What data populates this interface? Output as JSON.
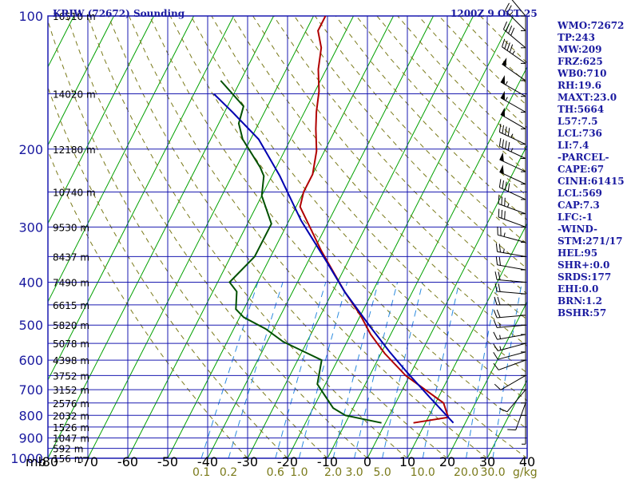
{
  "header": {
    "station": "KRIW (72672) Sounding",
    "time": "1200Z  9 OCT 25"
  },
  "units_label": "mb",
  "mixing_unit": "g/kg",
  "colors": {
    "grid": "#1a1ab0",
    "isotherm": "#00a000",
    "dry_adiabat": "#7a7a1a",
    "mixing_ratio": "#2a8adf",
    "temperature": "#b00000",
    "dewpoint": "#005000",
    "parcel": "#0000b0",
    "text": "#1a1aa0"
  },
  "indices": [
    "WMO:72672",
    "TP:243",
    "MW:209",
    "FRZ:625",
    "WB0:710",
    "RH:19.6",
    "MAXT:23.0",
    "TH:5664",
    "L57:7.5",
    "LCL:736",
    "LI:7.4",
    "-PARCEL-",
    "CAPE:67",
    "CINH:61415",
    "LCL:569",
    "CAP:7.3",
    "LFC:-1",
    "-WIND-",
    "STM:271/17",
    "HEL:95",
    "SHR+:0.0",
    "SRDS:177",
    "EHI:0.0",
    "BRN:1.2",
    "BSHR:57"
  ],
  "chart_data": {
    "type": "line",
    "title": "KRIW (72672) Sounding",
    "xlim": [
      -80,
      40
    ],
    "ylim": [
      1000,
      100
    ],
    "y_scale": "log",
    "x_ticks": [
      "-80",
      "-70",
      "-60",
      "-50",
      "-40",
      "-30",
      "-20",
      "-10",
      "0",
      "10",
      "20",
      "30",
      "40"
    ],
    "y_ticks": [
      100,
      200,
      300,
      400,
      500,
      600,
      700,
      800,
      900,
      1000
    ],
    "mixing_ratio_labels": [
      "0.1",
      "0.2",
      "0.6",
      "1.0",
      "2.0",
      "3.0",
      "5.0",
      "10.0",
      "20.0",
      "30.0"
    ],
    "height_labels": [
      {
        "p": 100,
        "h": "16510 m"
      },
      {
        "p": 150,
        "h": "14020 m"
      },
      {
        "p": 200,
        "h": "12180 m"
      },
      {
        "p": 250,
        "h": "10740 m"
      },
      {
        "p": 300,
        "h": "9530 m"
      },
      {
        "p": 350,
        "h": "8437 m"
      },
      {
        "p": 400,
        "h": "7490 m"
      },
      {
        "p": 450,
        "h": "6615 m"
      },
      {
        "p": 500,
        "h": "5820 m"
      },
      {
        "p": 550,
        "h": "5078 m"
      },
      {
        "p": 600,
        "h": "4398 m"
      },
      {
        "p": 650,
        "h": "3752 m"
      },
      {
        "p": 700,
        "h": "3152 m"
      },
      {
        "p": 750,
        "h": "2576 m"
      },
      {
        "p": 800,
        "h": "2032 m"
      },
      {
        "p": 850,
        "h": "1526 m"
      },
      {
        "p": 900,
        "h": "1047 m"
      },
      {
        "p": 950,
        "h": "592 m"
      },
      {
        "p": 1000,
        "h": "156 m"
      }
    ],
    "series": [
      {
        "name": "Temperature",
        "points": [
          [
            7,
            832
          ],
          [
            15,
            808
          ],
          [
            12,
            750
          ],
          [
            -1,
            650
          ],
          [
            -9,
            580
          ],
          [
            -15,
            525
          ],
          [
            -20,
            475
          ],
          [
            -27,
            420
          ],
          [
            -38,
            340
          ],
          [
            -49,
            270
          ],
          [
            -50,
            250
          ],
          [
            -50,
            228
          ],
          [
            -52,
            202
          ],
          [
            -55,
            180
          ],
          [
            -57,
            165
          ],
          [
            -59,
            148
          ],
          [
            -62,
            132
          ],
          [
            -64,
            118
          ],
          [
            -67,
            108
          ],
          [
            -67,
            100
          ]
        ]
      },
      {
        "name": "Dewpoint",
        "points": [
          [
            -1,
            832
          ],
          [
            -11,
            800
          ],
          [
            -15,
            770
          ],
          [
            -18,
            730
          ],
          [
            -22,
            680
          ],
          [
            -24,
            600
          ],
          [
            -36,
            545
          ],
          [
            -42,
            510
          ],
          [
            -49,
            480
          ],
          [
            -52,
            460
          ],
          [
            -54,
            420
          ],
          [
            -57,
            400
          ],
          [
            -54,
            350
          ],
          [
            -54,
            295
          ],
          [
            -60,
            255
          ],
          [
            -62,
            230
          ],
          [
            -64,
            220
          ],
          [
            -72,
            190
          ],
          [
            -75,
            175
          ],
          [
            -76,
            160
          ],
          [
            -85,
            140
          ]
        ]
      },
      {
        "name": "Parcel",
        "points": [
          [
            17,
            832
          ],
          [
            8,
            730
          ],
          [
            -1,
            640
          ],
          [
            -8,
            575
          ],
          [
            -16,
            505
          ],
          [
            -27,
            420
          ],
          [
            -36,
            355
          ],
          [
            -47,
            290
          ],
          [
            -58,
            230
          ],
          [
            -68,
            190
          ],
          [
            -78,
            165
          ],
          [
            -85,
            150
          ]
        ]
      }
    ],
    "wind_barbs": [
      [
        100,
        320,
        20
      ],
      [
        108,
        315,
        25
      ],
      [
        118,
        310,
        40
      ],
      [
        128,
        305,
        45
      ],
      [
        140,
        305,
        50
      ],
      [
        152,
        300,
        55
      ],
      [
        165,
        300,
        55
      ],
      [
        180,
        300,
        50
      ],
      [
        195,
        295,
        45
      ],
      [
        210,
        295,
        45
      ],
      [
        225,
        295,
        50
      ],
      [
        240,
        295,
        50
      ],
      [
        260,
        295,
        40
      ],
      [
        280,
        290,
        35
      ],
      [
        300,
        290,
        30
      ],
      [
        325,
        285,
        25
      ],
      [
        350,
        280,
        25
      ],
      [
        375,
        280,
        20
      ],
      [
        400,
        275,
        20
      ],
      [
        425,
        275,
        20
      ],
      [
        450,
        270,
        20
      ],
      [
        475,
        265,
        20
      ],
      [
        500,
        265,
        15
      ],
      [
        525,
        260,
        15
      ],
      [
        550,
        255,
        15
      ],
      [
        575,
        255,
        10
      ],
      [
        600,
        250,
        10
      ],
      [
        650,
        240,
        10
      ],
      [
        700,
        220,
        10
      ],
      [
        750,
        200,
        10
      ],
      [
        800,
        180,
        5
      ]
    ]
  }
}
